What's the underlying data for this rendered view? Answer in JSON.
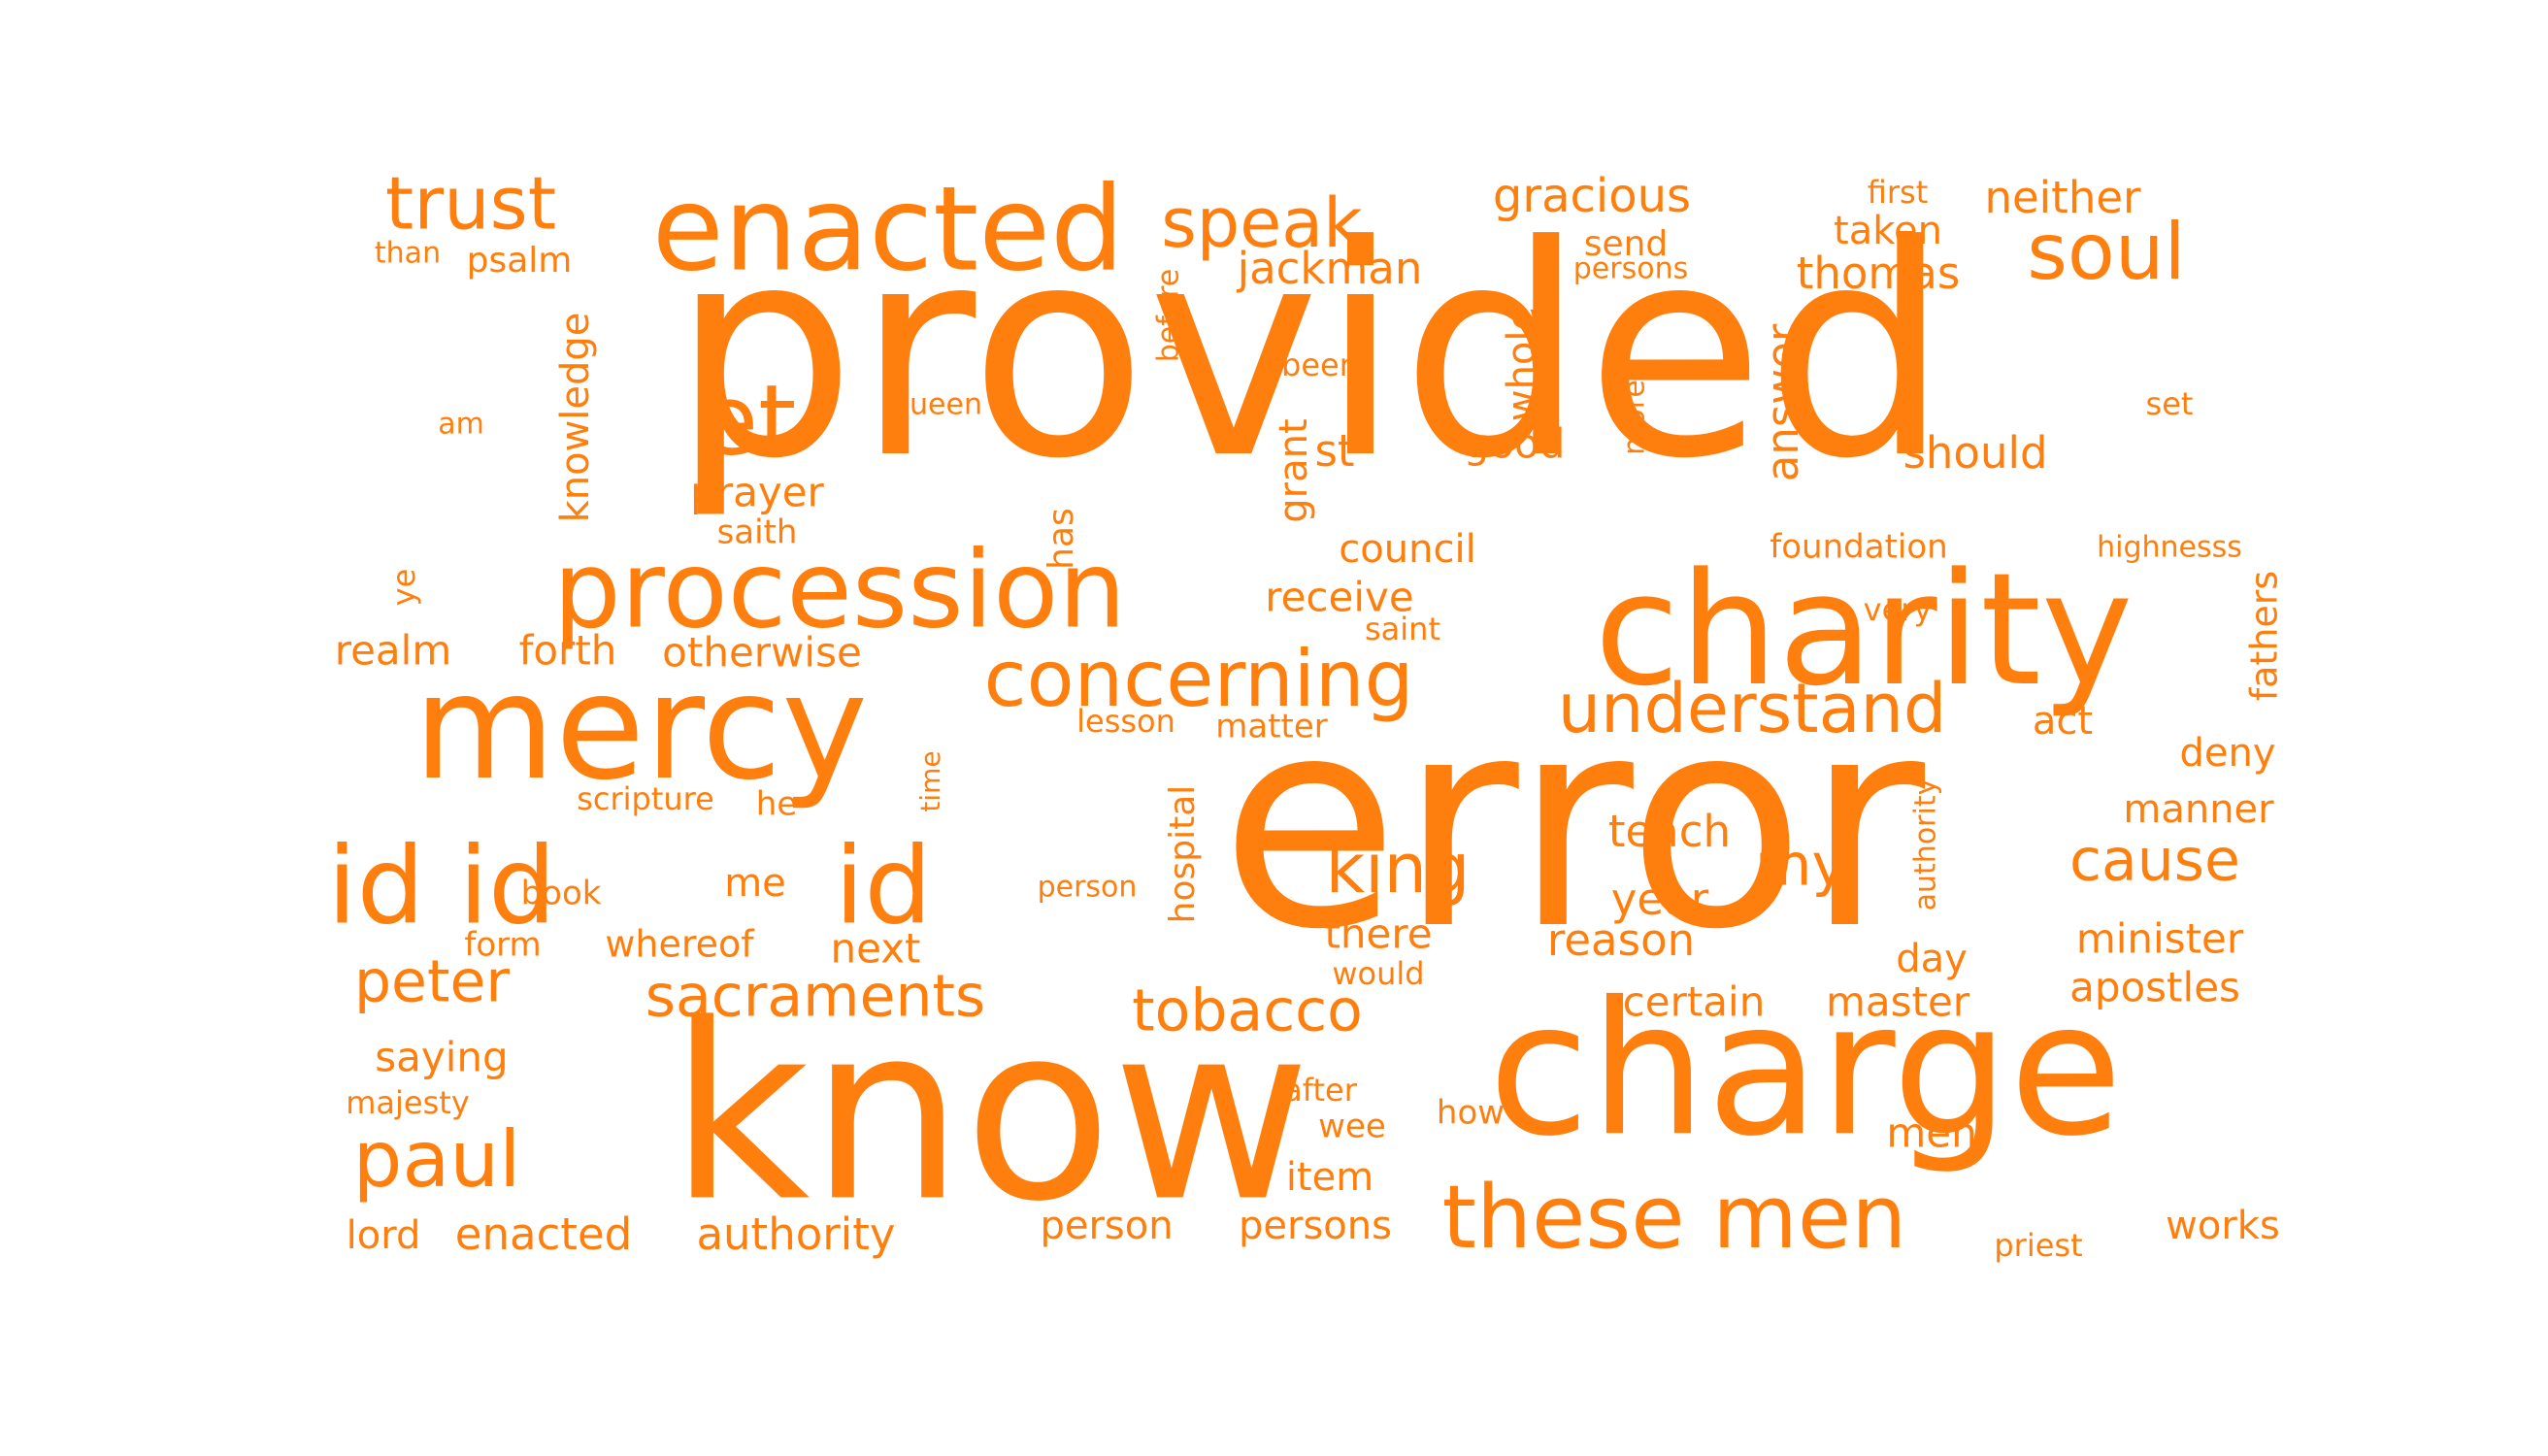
{
  "colors": {
    "background": "#ffffff",
    "word": "#ff7f0e"
  },
  "words": [
    "provided",
    "error",
    "know",
    "charge",
    "charity",
    "mercy",
    "enacted",
    "procession",
    "id id",
    "id",
    "these men",
    "concerning",
    "soul",
    "trust",
    "speak",
    "understand",
    "king",
    "sacraments",
    "tobacco",
    "cause",
    "paul",
    "peter",
    "my",
    "et",
    "gracious",
    "neither",
    "thomas",
    "answer",
    "jackman",
    "knowledge",
    "whole",
    "should",
    "grant",
    "council",
    "prayer",
    "act",
    "deny",
    "manner",
    "minister",
    "apostles",
    "teach",
    "year",
    "reason",
    "master",
    "certain",
    "there",
    "receive",
    "fathers",
    "hospital",
    "otherwise",
    "realm",
    "forth",
    "enacted",
    "authority",
    "lord",
    "saying",
    "works",
    "persons",
    "person",
    "taken",
    "send",
    "psalm",
    "than",
    "first",
    "been",
    "queen",
    "am",
    "set",
    "good",
    "st",
    "has",
    "saith",
    "ye",
    "before",
    "more",
    "foundation",
    "highnesss",
    "very",
    "saint",
    "lesson",
    "matter",
    "scripture",
    "he",
    "time",
    "book",
    "me",
    "form",
    "whereof",
    "next",
    "would",
    "item",
    "wee",
    "after",
    "how",
    "day",
    "men",
    "priest",
    "majesty",
    "persons",
    "person",
    "authority"
  ]
}
